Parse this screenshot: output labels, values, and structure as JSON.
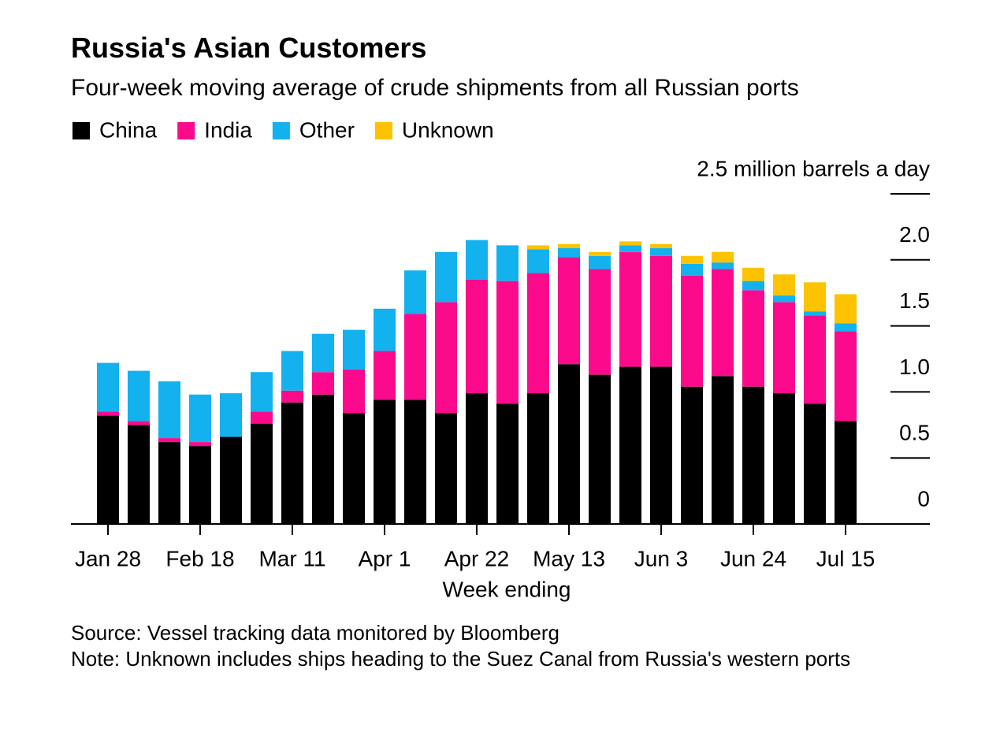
{
  "chart_data": {
    "type": "stacked-bar",
    "title": "Russia's Asian Customers",
    "subtitle": "Four-week moving average of crude shipments from all Russian ports",
    "x_label": "Week ending",
    "source": "Source: Vessel tracking data monitored by Bloomberg",
    "note": "Note: Unknown includes ships heading to the Suez Canal from Russia's western ports",
    "categories": [
      "Jan 28",
      null,
      null,
      "Feb 18",
      null,
      null,
      "Mar 11",
      null,
      null,
      "Apr 1",
      null,
      null,
      "Apr 22",
      null,
      null,
      "May 13",
      null,
      null,
      "Jun 3",
      null,
      null,
      "Jun 24",
      null,
      null,
      "Jul 15"
    ],
    "series": [
      {
        "name": "China",
        "color": "#000000",
        "values": [
          0.82,
          0.75,
          0.62,
          0.59,
          0.66,
          0.76,
          0.92,
          0.98,
          0.84,
          0.94,
          0.94,
          0.84,
          0.99,
          0.91,
          0.99,
          1.21,
          1.13,
          1.19,
          1.19,
          1.04,
          1.12,
          1.04,
          0.99,
          0.91,
          0.78
        ]
      },
      {
        "name": "India",
        "color": "#fb0b8c",
        "values": [
          0.03,
          0.03,
          0.03,
          0.03,
          0,
          0.09,
          0.09,
          0.17,
          0.33,
          0.37,
          0.65,
          0.84,
          0.86,
          0.93,
          0.91,
          0.81,
          0.8,
          0.87,
          0.84,
          0.84,
          0.81,
          0.73,
          0.69,
          0.67,
          0.68
        ]
      },
      {
        "name": "Other",
        "color": "#14b1ef",
        "values": [
          0.37,
          0.38,
          0.43,
          0.36,
          0.33,
          0.3,
          0.3,
          0.29,
          0.3,
          0.32,
          0.33,
          0.38,
          0.3,
          0.27,
          0.18,
          0.07,
          0.1,
          0.05,
          0.06,
          0.09,
          0.05,
          0.07,
          0.05,
          0.03,
          0.06
        ]
      },
      {
        "name": "Unknown",
        "color": "#fdc300",
        "values": [
          0,
          0,
          0,
          0,
          0,
          0,
          0,
          0,
          0,
          0,
          0,
          0,
          0,
          0,
          0.03,
          0.03,
          0.03,
          0.03,
          0.03,
          0.06,
          0.08,
          0.1,
          0.16,
          0.22,
          0.22
        ]
      }
    ],
    "ylim": [
      0,
      2.5
    ],
    "yticks": [
      0,
      0.5,
      {
        "value": 1,
        "label": "1.0"
      },
      1.5,
      {
        "value": 2,
        "label": "2.0"
      },
      {
        "value": 2.5,
        "label": "2.5 million barrels a day"
      }
    ]
  }
}
